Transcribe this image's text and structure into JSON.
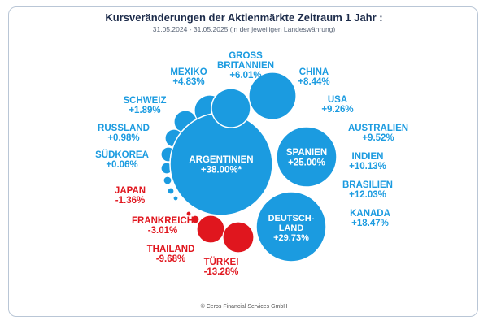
{
  "page": {
    "title": "Kursveränderungen der Aktienmärkte Zeitraum 1 Jahr :",
    "subtitle": "31.05.2024 - 31.05.2025 (in der jeweiligen Landeswährung)",
    "footer": "© Ceros Financial Services GmbH"
  },
  "colors": {
    "positive": "#1b9be0",
    "negative": "#e0161e",
    "title": "#1c2b4a"
  },
  "chart_data": {
    "type": "bubble",
    "title": "Kursveränderungen der Aktienmärkte Zeitraum 1 Jahr :",
    "subtitle": "31.05.2024 - 31.05.2025 (in der jeweiligen Landeswährung)",
    "unit": "%",
    "points": [
      {
        "name": "ARGENTINIEN",
        "value": 38.0,
        "label": "+38.00%*"
      },
      {
        "name": "DEUTSCH-LAND",
        "value": 29.73,
        "label": "+29.73%"
      },
      {
        "name": "SPANIEN",
        "value": 25.0,
        "label": "+25.00%"
      },
      {
        "name": "KANADA",
        "value": 18.47,
        "label": "+18.47%"
      },
      {
        "name": "BRASILIEN",
        "value": 12.03,
        "label": "+12.03%"
      },
      {
        "name": "INDIEN",
        "value": 10.13,
        "label": "+10.13%"
      },
      {
        "name": "AUSTRALIEN",
        "value": 9.52,
        "label": "+9.52%"
      },
      {
        "name": "USA",
        "value": 9.26,
        "label": "+9.26%"
      },
      {
        "name": "CHINA",
        "value": 8.44,
        "label": "+8.44%"
      },
      {
        "name": "GROSS BRITANNIEN",
        "value": 6.01,
        "label": "+6.01%"
      },
      {
        "name": "MEXIKO",
        "value": 4.83,
        "label": "+4.83%"
      },
      {
        "name": "SCHWEIZ",
        "value": 1.89,
        "label": "+1.89%"
      },
      {
        "name": "RUSSLAND",
        "value": 0.98,
        "label": "+0.98%"
      },
      {
        "name": "SÜDKOREA",
        "value": 0.06,
        "label": "+0.06%"
      },
      {
        "name": "JAPAN",
        "value": -1.36,
        "label": "-1.36%"
      },
      {
        "name": "FRANKREICH",
        "value": -3.01,
        "label": "-3.01%"
      },
      {
        "name": "THAILAND",
        "value": -9.68,
        "label": "-9.68%"
      },
      {
        "name": "TÜRKEI",
        "value": -13.28,
        "label": "-13.28%"
      }
    ]
  }
}
